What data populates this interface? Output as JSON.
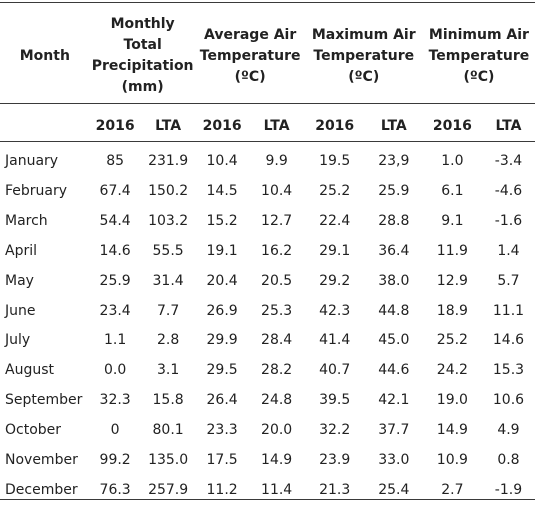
{
  "table": {
    "header": {
      "month": "Month",
      "precip": [
        "Monthly",
        "Total",
        "Precipitation",
        "(mm)"
      ],
      "avg": [
        "Average Air",
        "Temperature",
        "(ºC)"
      ],
      "max": [
        "Maximum Air",
        "Temperature",
        "(ºC)"
      ],
      "min": [
        "Minimum Air",
        "Temperature",
        "(ºC)"
      ]
    },
    "subheader": [
      "2016",
      "LTA",
      "2016",
      "LTA",
      "2016",
      "LTA",
      "2016",
      "LTA"
    ],
    "rows": [
      [
        "January",
        "85",
        "231.9",
        "10.4",
        "9.9",
        "19.5",
        "23,9",
        "1.0",
        "-3.4"
      ],
      [
        "February",
        "67.4",
        "150.2",
        "14.5",
        "10.4",
        "25.2",
        "25.9",
        "6.1",
        "-4.6"
      ],
      [
        "March",
        "54.4",
        "103.2",
        "15.2",
        "12.7",
        "22.4",
        "28.8",
        "9.1",
        "-1.6"
      ],
      [
        "April",
        "14.6",
        "55.5",
        "19.1",
        "16.2",
        "29.1",
        "36.4",
        "11.9",
        "1.4"
      ],
      [
        "May",
        "25.9",
        "31.4",
        "20.4",
        "20.5",
        "29.2",
        "38.0",
        "12.9",
        "5.7"
      ],
      [
        "June",
        "23.4",
        "7.7",
        "26.9",
        "25.3",
        "42.3",
        "44.8",
        "18.9",
        "11.1"
      ],
      [
        "July",
        "1.1",
        "2.8",
        "29.9",
        "28.4",
        "41.4",
        "45.0",
        "25.2",
        "14.6"
      ],
      [
        "August",
        "0.0",
        "3.1",
        "29.5",
        "28.2",
        "40.7",
        "44.6",
        "24.2",
        "15.3"
      ],
      [
        "September",
        "32.3",
        "15.8",
        "26.4",
        "24.8",
        "39.5",
        "42.1",
        "19.0",
        "10.6"
      ],
      [
        "October",
        "0",
        "80.1",
        "23.3",
        "20.0",
        "32.2",
        "37.7",
        "14.9",
        "4.9"
      ],
      [
        "November",
        "99.2",
        "135.0",
        "17.5",
        "14.9",
        "23.9",
        "33.0",
        "10.9",
        "0.8"
      ],
      [
        "December",
        "76.3",
        "257.9",
        "11.2",
        "11.4",
        "21.3",
        "25.4",
        "2.7",
        "-1.9"
      ]
    ]
  }
}
